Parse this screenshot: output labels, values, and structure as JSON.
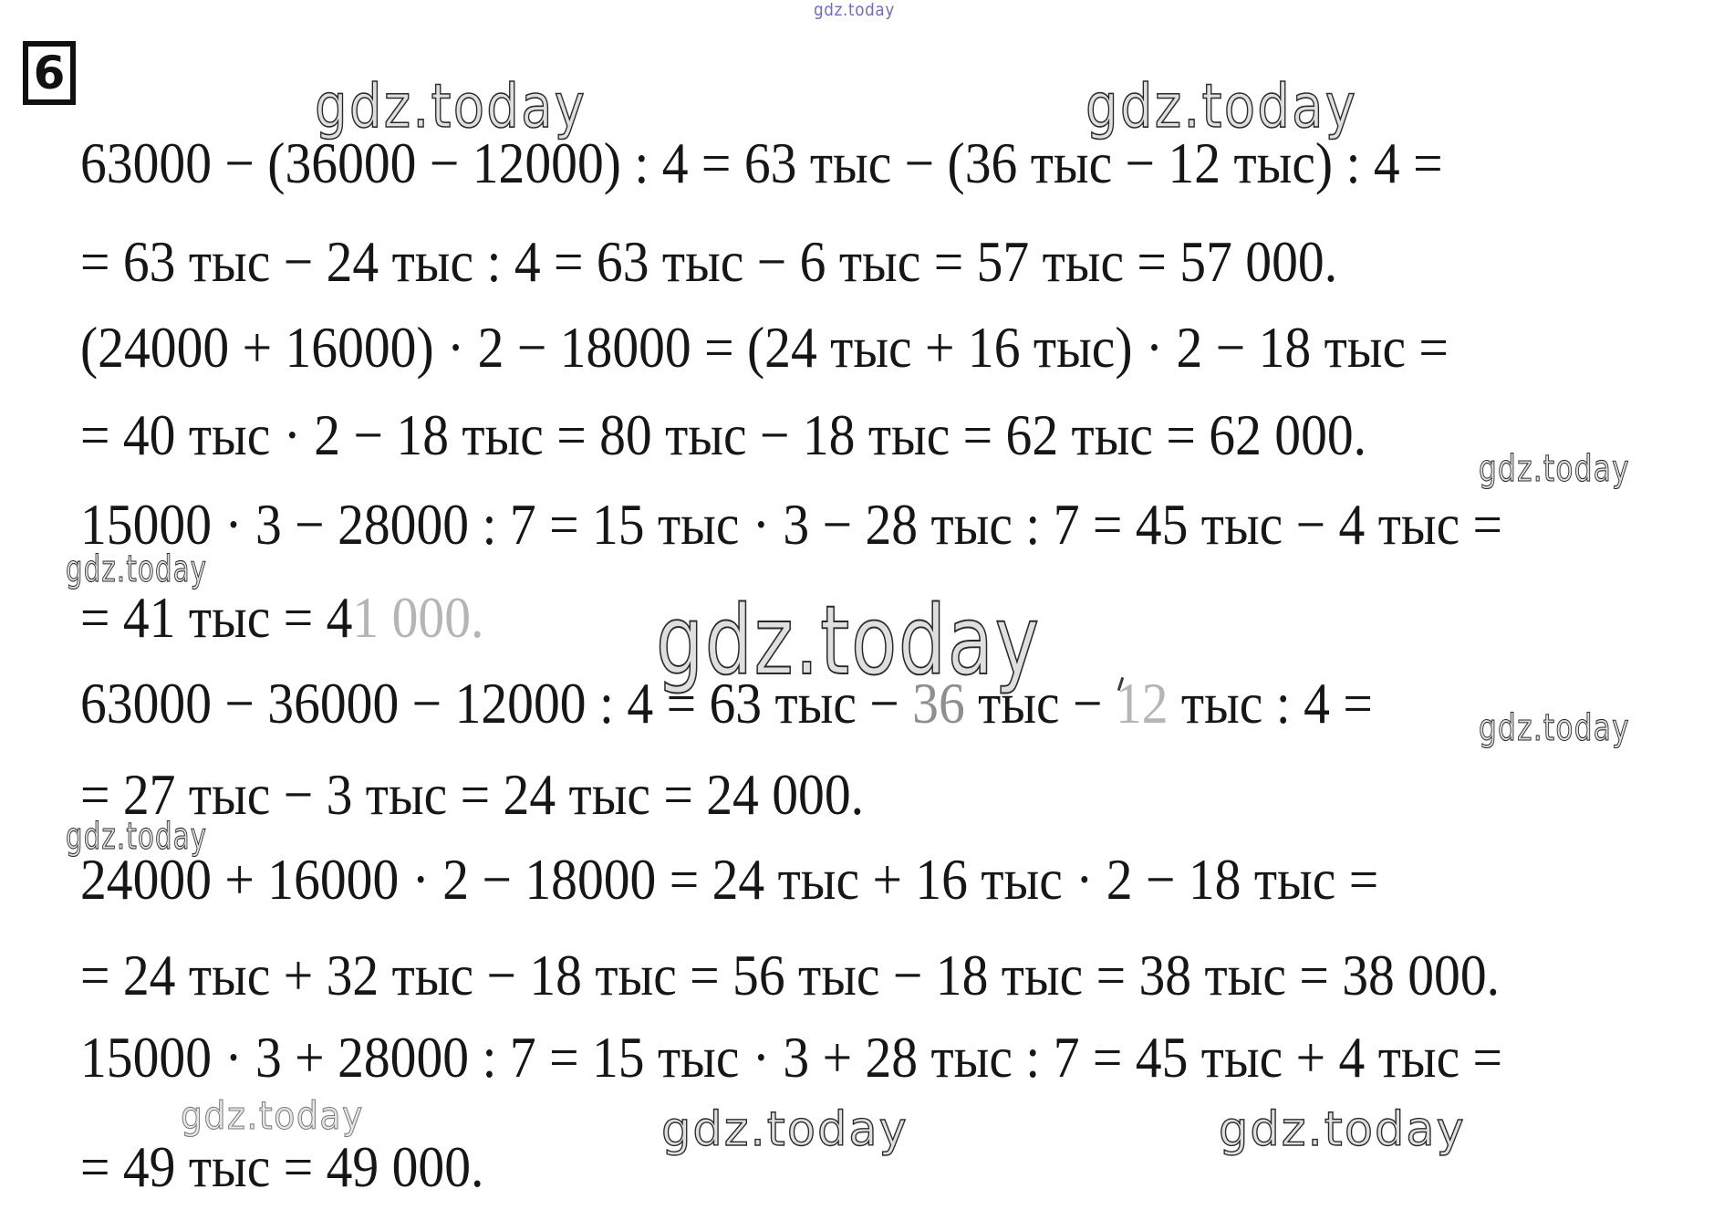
{
  "page": {
    "background": "#ffffff",
    "ink": "#161616"
  },
  "problem": {
    "number": "6"
  },
  "watermark": {
    "text": "gdz.today",
    "blue": "#6b6bcc",
    "gray": "#8a8a8a",
    "ink": "#1c1c1c"
  },
  "equations": {
    "lines": [
      {
        "segments": [
          {
            "text": "63000 − (36000 − 12000) : 4 = 63 тыс − (36 тыс − 12 тыс) : 4 =",
            "tone": "ink"
          }
        ]
      },
      {
        "segments": [
          {
            "text": "= 63 тыс − 24 тыс : 4 = 63 тыс − 6 тыс = 57 тыс = 57 000.",
            "tone": "ink"
          }
        ]
      },
      {
        "segments": [
          {
            "text": "(24000 + 16000) · 2 − 18000 = (24 тыс + 16 тыс) · 2 − 18 тыс =",
            "tone": "ink"
          }
        ]
      },
      {
        "segments": [
          {
            "text": "= 40 тыс · 2 − 18 тыс = 80 тыс − 18 тыс = 62 тыс = 62 000.",
            "tone": "ink"
          }
        ]
      },
      {
        "segments": [
          {
            "text": "15000 · 3 − 28000 : 7 = 15 тыс · 3 − 28 тыс : 7 = 45 тыс − 4 тыс =",
            "tone": "ink"
          }
        ]
      },
      {
        "segments": [
          {
            "text": "= 41 тыс = 4",
            "tone": "ink"
          },
          {
            "text": "1 000.",
            "tone": "faded"
          }
        ]
      },
      {
        "segments": [
          {
            "text": "63000 − 36000 − 12000 : 4 = 63 тыс − ",
            "tone": "ink"
          },
          {
            "text": "36",
            "tone": "dim"
          },
          {
            "text": " тыс − ",
            "tone": "ink"
          },
          {
            "text": "12",
            "tone": "faded"
          },
          {
            "text": " тыс : 4 =",
            "tone": "ink"
          }
        ]
      },
      {
        "segments": [
          {
            "text": "= 27 тыс − 3 тыс = 24 тыс = 24 000.",
            "tone": "ink"
          }
        ]
      },
      {
        "segments": [
          {
            "text": "24000 + 16000 · 2 − 18000 = 24 тыс + 16 тыс · 2 − 18 тыс =",
            "tone": "ink"
          }
        ]
      },
      {
        "segments": [
          {
            "text": "= 24 тыс + 32 тыс − 18 тыс = 56 тыс − 18 тыс = 38 тыс = 38 000.",
            "tone": "ink"
          }
        ]
      },
      {
        "segments": [
          {
            "text": "15000 · 3 + 28000 : 7 = 15 тыс · 3 + 28 тыс : 7 = 45 тыс + 4 тыс =",
            "tone": "ink"
          }
        ]
      },
      {
        "segments": [
          {
            "text": "= 49 тыс = 49 000.",
            "tone": "ink"
          }
        ]
      }
    ]
  }
}
